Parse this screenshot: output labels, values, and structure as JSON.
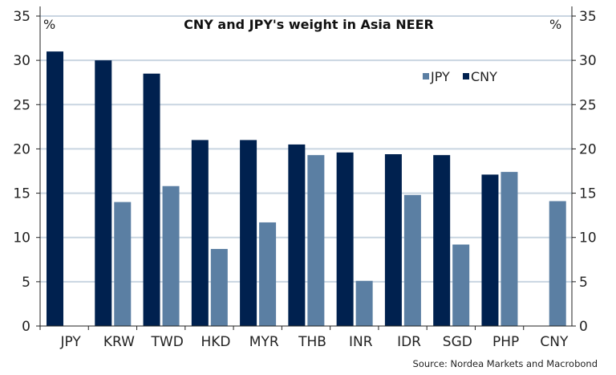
{
  "chart_data": {
    "type": "bar",
    "title": "CNY and JPY's weight in Asia NEER",
    "unit_left": "%",
    "unit_right": "%",
    "source": "Source: Nordea Markets and Macrobond",
    "categories": [
      "JPY",
      "KRW",
      "TWD",
      "HKD",
      "MYR",
      "THB",
      "INR",
      "IDR",
      "SGD",
      "PHP",
      "CNY"
    ],
    "series": [
      {
        "name": "CNY",
        "color": "#00214f",
        "values": [
          31.0,
          30.0,
          28.5,
          21.0,
          21.0,
          20.5,
          19.6,
          19.4,
          19.3,
          17.1,
          null
        ]
      },
      {
        "name": "JPY",
        "color": "#5b7fa3",
        "values": [
          null,
          14.0,
          15.8,
          8.7,
          11.7,
          19.3,
          5.1,
          14.8,
          9.2,
          17.4,
          14.1
        ]
      }
    ],
    "legend_order": [
      "JPY",
      "CNY"
    ],
    "legend_placement": "top-right",
    "ylim": [
      0,
      35
    ],
    "yticks": [
      0,
      5,
      10,
      15,
      20,
      25,
      30,
      35
    ],
    "grid": true,
    "grid_color": "#c9d5e1"
  }
}
